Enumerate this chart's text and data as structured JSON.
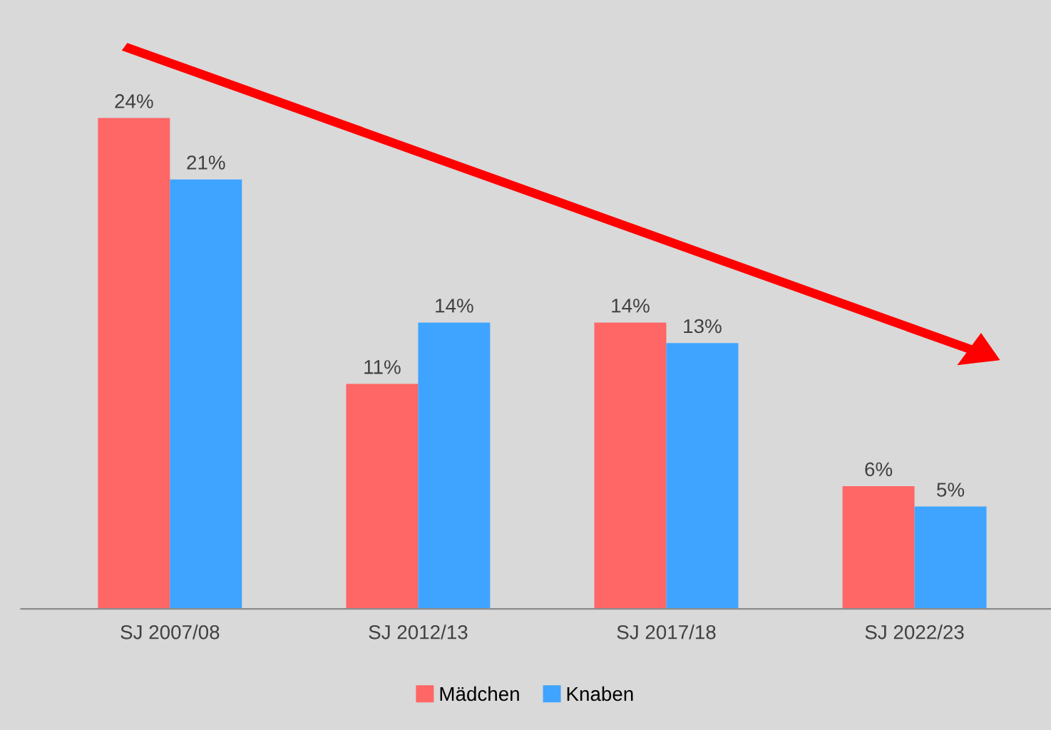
{
  "chart_data": {
    "type": "bar",
    "categories": [
      "SJ 2007/08",
      "SJ 2012/13",
      "SJ 2017/18",
      "SJ 2022/23"
    ],
    "series": [
      {
        "name": "Mädchen",
        "color": "#ff6666",
        "values": [
          24,
          11,
          14,
          6
        ],
        "value_labels": [
          "24%",
          "11%",
          "14%",
          "6%"
        ]
      },
      {
        "name": "Knaben",
        "color": "#3fa4ff",
        "values": [
          21,
          14,
          13,
          5
        ],
        "value_labels": [
          "21%",
          "14%",
          "13%",
          "5%"
        ]
      }
    ],
    "legend": "bottom"
  }
}
